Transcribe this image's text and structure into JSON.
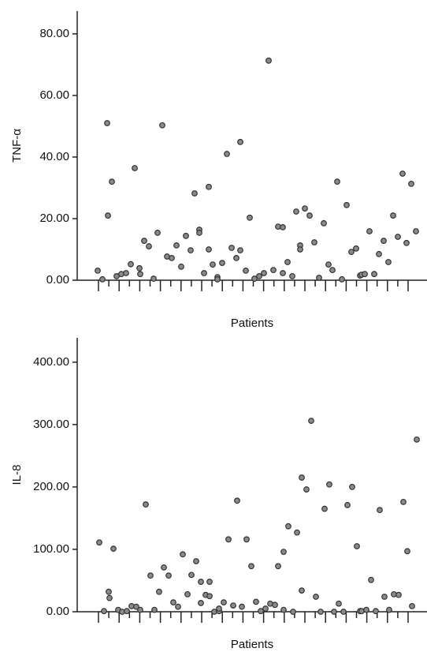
{
  "chart_data": [
    {
      "type": "scatter",
      "y_label": "TNF-α",
      "x_label": "Patients",
      "color": "#8a8a8a",
      "xlim": [
        0,
        89
      ],
      "ylim": [
        0,
        87.4
      ],
      "yticks": [
        {
          "value": 0,
          "label": "0.00"
        },
        {
          "value": 20,
          "label": "20.00"
        },
        {
          "value": 40,
          "label": "40.00"
        },
        {
          "value": 60,
          "label": "60.00"
        },
        {
          "value": 80,
          "label": "80.00"
        }
      ],
      "x": [
        5.2,
        6.4,
        7.6,
        7.8,
        8.8,
        10,
        11.2,
        12.4,
        13.6,
        14.6,
        15.8,
        16,
        17,
        18.2,
        19.4,
        20.4,
        21.6,
        22.8,
        24,
        25.2,
        26.4,
        27.6,
        28.8,
        29.8,
        31,
        31,
        32.2,
        33.4,
        33.4,
        34.4,
        35.6,
        35.6,
        36.8,
        38,
        39.2,
        40.4,
        41.4,
        41.4,
        42.8,
        43.8,
        45,
        46.2,
        47.4,
        48.6,
        49.8,
        51,
        52.2,
        52.2,
        53.4,
        54.6,
        55.6,
        56.6,
        56.6,
        57.8,
        59,
        60.2,
        61.4,
        62.6,
        63.8,
        64.8,
        66,
        67.2,
        68.4,
        69.6,
        70.8,
        71.8,
        72.2,
        73,
        74.2,
        75.4,
        76.6,
        77.8,
        79,
        80.2,
        81.4,
        82.6,
        83.6,
        84.8,
        86
      ],
      "values": [
        3.1,
        0.3,
        51,
        21,
        32,
        1.3,
        2,
        2.3,
        5.2,
        36.4,
        3.9,
        2,
        12.8,
        11,
        0.5,
        15.4,
        50.3,
        7.7,
        7.2,
        11.3,
        4.4,
        14.4,
        9.7,
        28.2,
        16.4,
        15.4,
        2.3,
        30.3,
        10,
        5.1,
        1,
        0.3,
        5.6,
        41,
        10.5,
        7.2,
        44.9,
        9.7,
        3.1,
        20.3,
        0.5,
        1.3,
        2.3,
        71.3,
        3.3,
        17.4,
        17.2,
        2.3,
        5.9,
        1.3,
        22.3,
        11.3,
        10,
        23.3,
        21,
        12.3,
        0.8,
        18.5,
        5.1,
        3.3,
        32,
        0.3,
        24.4,
        9.2,
        10.3,
        1.5,
        1.8,
        2,
        15.9,
        2,
        8.5,
        12.8,
        5.9,
        21,
        14.1,
        34.6,
        12.1,
        31.3,
        15.9
      ]
    },
    {
      "type": "scatter",
      "y_label": "IL-8",
      "x_label": "Patients",
      "color": "#8a8a8a",
      "xlim": [
        0,
        89
      ],
      "ylim": [
        0,
        439
      ],
      "yticks": [
        {
          "value": 0,
          "label": "0.00"
        },
        {
          "value": 100,
          "label": "100.00"
        },
        {
          "value": 200,
          "label": "200.00"
        },
        {
          "value": 300,
          "label": "300.00"
        },
        {
          "value": 400,
          "label": "400.00"
        }
      ],
      "x": [
        5.6,
        6.8,
        8,
        8.2,
        9.2,
        10.4,
        11.4,
        12.6,
        13.8,
        15,
        16,
        17.4,
        19.6,
        20.8,
        18.6,
        22,
        23.2,
        24.4,
        25.6,
        26.8,
        28,
        29,
        30.2,
        31.4,
        31.4,
        32.6,
        33.6,
        33.6,
        34.8,
        36,
        36,
        37.2,
        38.4,
        39.6,
        40.6,
        41.8,
        43,
        44.2,
        45.4,
        46.6,
        47.8,
        49,
        50.2,
        51,
        52.4,
        52.4,
        53.6,
        54.8,
        55.8,
        57,
        57,
        58.2,
        59.4,
        60.6,
        61.8,
        62.8,
        64,
        65.2,
        66.4,
        67.6,
        68.6,
        69.8,
        71,
        71.8,
        72.2,
        73.4,
        74.6,
        75.8,
        76.8,
        78,
        79.2,
        80.4,
        81.6,
        82.8,
        83.8,
        85,
        86.2
      ],
      "values": [
        111,
        1,
        32,
        22,
        101,
        3,
        0,
        1,
        9,
        8,
        3,
        172,
        3,
        32,
        58,
        71,
        58,
        15,
        8,
        92,
        28,
        59,
        81,
        48,
        14,
        27,
        48,
        25,
        0,
        1,
        5,
        15,
        116,
        10,
        178,
        8,
        116,
        73,
        16,
        1,
        5,
        13,
        11,
        73,
        96,
        3,
        137,
        0,
        127,
        215,
        34,
        196,
        306,
        24,
        0,
        165,
        204,
        0,
        13,
        0,
        171,
        200,
        105,
        1,
        1,
        3,
        51,
        1,
        163,
        24,
        3,
        28,
        27,
        176,
        97,
        9,
        276
      ]
    }
  ]
}
